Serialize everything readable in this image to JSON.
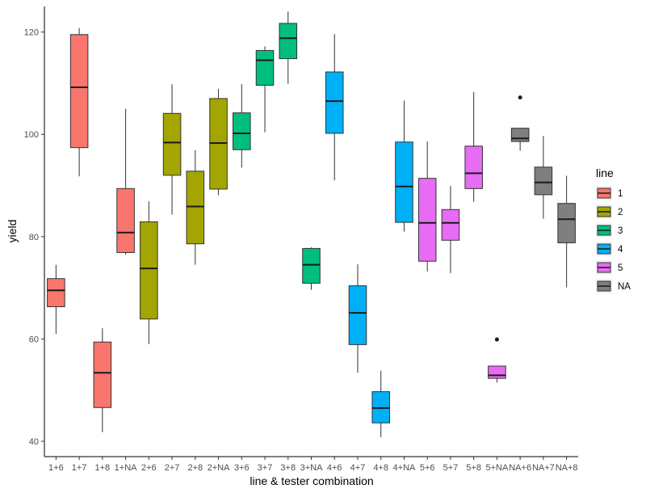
{
  "chart_data": {
    "type": "boxplot",
    "xlabel": "line & tester combination",
    "ylabel": "yield",
    "ylim": [
      37,
      125
    ],
    "yticks": [
      40,
      60,
      80,
      100,
      120
    ],
    "grid": false,
    "legend": {
      "title": "line",
      "position": "right",
      "entries": [
        {
          "label": "1",
          "color": "#F8766D"
        },
        {
          "label": "2",
          "color": "#A3A500"
        },
        {
          "label": "3",
          "color": "#00BF7D"
        },
        {
          "label": "4",
          "color": "#00B0F6"
        },
        {
          "label": "5",
          "color": "#E76BF3"
        },
        {
          "label": "NA",
          "color": "#7F7F7F"
        }
      ]
    },
    "boxes": [
      {
        "category": "1+6",
        "line": "1",
        "whisker_low": 61,
        "q1": 66.3,
        "median": 69.5,
        "q3": 71.8,
        "whisker_high": 74.5,
        "outliers": []
      },
      {
        "category": "1+7",
        "line": "1",
        "whisker_low": 91.8,
        "q1": 97.4,
        "median": 109.2,
        "q3": 119.5,
        "whisker_high": 120.8,
        "outliers": []
      },
      {
        "category": "1+8",
        "line": "1",
        "whisker_low": 41.8,
        "q1": 46.6,
        "median": 53.4,
        "q3": 59.4,
        "whisker_high": 62.1,
        "outliers": []
      },
      {
        "category": "1+NA",
        "line": "1",
        "whisker_low": 76.5,
        "q1": 76.9,
        "median": 80.8,
        "q3": 89.4,
        "whisker_high": 105,
        "outliers": []
      },
      {
        "category": "2+6",
        "line": "2",
        "whisker_low": 59,
        "q1": 63.9,
        "median": 73.8,
        "q3": 82.9,
        "whisker_high": 86.9,
        "outliers": []
      },
      {
        "category": "2+7",
        "line": "2",
        "whisker_low": 84.3,
        "q1": 92,
        "median": 98.4,
        "q3": 104.1,
        "whisker_high": 109.8,
        "outliers": []
      },
      {
        "category": "2+8",
        "line": "2",
        "whisker_low": 74.5,
        "q1": 78.6,
        "median": 85.9,
        "q3": 92.8,
        "whisker_high": 96.9,
        "outliers": []
      },
      {
        "category": "2+NA",
        "line": "2",
        "whisker_low": 88.1,
        "q1": 89.3,
        "median": 98.3,
        "q3": 107,
        "whisker_high": 108.9,
        "outliers": []
      },
      {
        "category": "3+6",
        "line": "3",
        "whisker_low": 93.5,
        "q1": 97,
        "median": 100.2,
        "q3": 104.2,
        "whisker_high": 109.8,
        "outliers": []
      },
      {
        "category": "3+7",
        "line": "3",
        "whisker_low": 100.4,
        "q1": 109.6,
        "median": 114.5,
        "q3": 116.4,
        "whisker_high": 117.2,
        "outliers": []
      },
      {
        "category": "3+8",
        "line": "3",
        "whisker_low": 109.9,
        "q1": 114.8,
        "median": 118.8,
        "q3": 121.7,
        "whisker_high": 124,
        "outliers": []
      },
      {
        "category": "3+NA",
        "line": "3",
        "whisker_low": 69.6,
        "q1": 70.9,
        "median": 74.5,
        "q3": 77.7,
        "whisker_high": 77.9,
        "outliers": []
      },
      {
        "category": "4+6",
        "line": "4",
        "whisker_low": 91,
        "q1": 100.2,
        "median": 106.5,
        "q3": 112.2,
        "whisker_high": 119.6,
        "outliers": []
      },
      {
        "category": "4+7",
        "line": "4",
        "whisker_low": 53.4,
        "q1": 58.9,
        "median": 65.1,
        "q3": 70.4,
        "whisker_high": 74.6,
        "outliers": []
      },
      {
        "category": "4+8",
        "line": "4",
        "whisker_low": 40.8,
        "q1": 43.6,
        "median": 46.5,
        "q3": 49.7,
        "whisker_high": 53.8,
        "outliers": []
      },
      {
        "category": "4+NA",
        "line": "4",
        "whisker_low": 81,
        "q1": 82.8,
        "median": 89.8,
        "q3": 98.5,
        "whisker_high": 106.6,
        "outliers": []
      },
      {
        "category": "5+6",
        "line": "5",
        "whisker_low": 73.2,
        "q1": 75.2,
        "median": 82.7,
        "q3": 91.4,
        "whisker_high": 98.6,
        "outliers": []
      },
      {
        "category": "5+7",
        "line": "5",
        "whisker_low": 72.9,
        "q1": 79.3,
        "median": 82.7,
        "q3": 85.3,
        "whisker_high": 89.9,
        "outliers": []
      },
      {
        "category": "5+8",
        "line": "5",
        "whisker_low": 86.8,
        "q1": 89.4,
        "median": 92.4,
        "q3": 97.7,
        "whisker_high": 108.3,
        "outliers": []
      },
      {
        "category": "5+NA",
        "line": "5",
        "whisker_low": 51.5,
        "q1": 52.3,
        "median": 52.9,
        "q3": 54.7,
        "whisker_high": 54.7,
        "outliers": [
          59.9
        ]
      },
      {
        "category": "NA+6",
        "line": "NA",
        "whisker_low": 96.8,
        "q1": 98.6,
        "median": 99.2,
        "q3": 101.2,
        "whisker_high": 101.2,
        "outliers": [
          107.2
        ]
      },
      {
        "category": "NA+7",
        "line": "NA",
        "whisker_low": 83.5,
        "q1": 88.2,
        "median": 90.6,
        "q3": 93.6,
        "whisker_high": 99.7,
        "outliers": []
      },
      {
        "category": "NA+8",
        "line": "NA",
        "whisker_low": 70.1,
        "q1": 78.8,
        "median": 83.4,
        "q3": 86.5,
        "whisker_high": 91.9,
        "outliers": []
      }
    ]
  }
}
